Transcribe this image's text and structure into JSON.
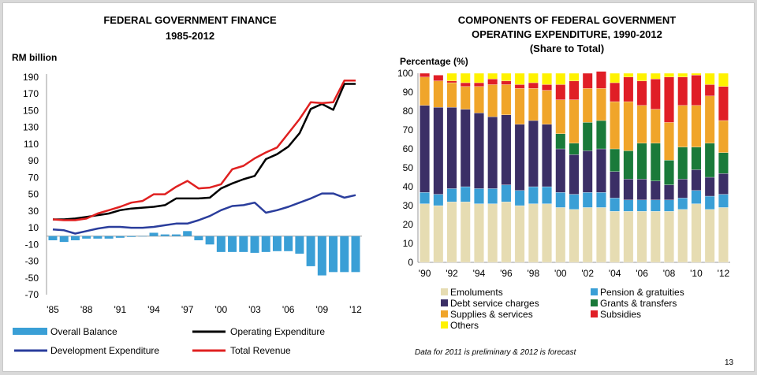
{
  "page_number": "13",
  "chart_data": [
    {
      "type": "line",
      "title": "FEDERAL GOVERNMENT FINANCE",
      "subtitle": "1985-2012",
      "ylabel": "RM  billion",
      "ylim": [
        -70,
        190
      ],
      "yticks": [
        190,
        170,
        150,
        130,
        110,
        90,
        70,
        50,
        30,
        10,
        -10,
        -30,
        -50,
        -70
      ],
      "xticks": [
        "'85",
        "'88",
        "'91",
        "'94",
        "'97",
        "'00",
        "'03",
        "'06",
        "'09",
        "'12"
      ],
      "x": [
        1985,
        1986,
        1987,
        1988,
        1989,
        1990,
        1991,
        1992,
        1993,
        1994,
        1995,
        1996,
        1997,
        1998,
        1999,
        2000,
        2001,
        2002,
        2003,
        2004,
        2005,
        2006,
        2007,
        2008,
        2009,
        2010,
        2011,
        2012
      ],
      "bar_series": {
        "name": "Overall Balance",
        "color": "#3a9fd6",
        "values": [
          -5,
          -7,
          -5,
          -3,
          -3,
          -3,
          -2,
          -1,
          0,
          4,
          2,
          2,
          6,
          -5,
          -10,
          -19,
          -19,
          -19,
          -20,
          -19,
          -18,
          -18,
          -21,
          -36,
          -47,
          -43,
          -43,
          -43
        ]
      },
      "series": [
        {
          "name": "Operating Expenditure",
          "color": "#000000",
          "values": [
            20,
            20,
            21,
            23,
            25,
            27,
            31,
            33,
            34,
            35,
            37,
            45,
            45,
            45,
            46,
            57,
            63,
            68,
            72,
            92,
            98,
            107,
            123,
            152,
            158,
            151,
            182,
            182
          ]
        },
        {
          "name": "Development Expenditure",
          "color": "#2a3d9c",
          "values": [
            8,
            7,
            3,
            6,
            9,
            11,
            11,
            10,
            10,
            11,
            13,
            15,
            15,
            19,
            24,
            31,
            36,
            37,
            40,
            28,
            31,
            35,
            40,
            45,
            51,
            51,
            46,
            49
          ]
        },
        {
          "name": "Total Revenue",
          "color": "#e02020",
          "values": [
            20,
            19,
            19,
            21,
            27,
            31,
            35,
            40,
            42,
            50,
            50,
            59,
            66,
            57,
            58,
            62,
            80,
            84,
            93,
            100,
            106,
            123,
            140,
            160,
            159,
            160,
            186,
            186
          ]
        }
      ]
    },
    {
      "type": "bar",
      "stacked": true,
      "title": "COMPONENTS OF FEDERAL GOVERNMENT",
      "subtitle": "OPERATING EXPENDITURE, 1990-2012",
      "subtitle2": "(Share to Total)",
      "ylabel": "Percentage (%)",
      "ylim": [
        0,
        100
      ],
      "yticks": [
        0,
        10,
        20,
        30,
        40,
        50,
        60,
        70,
        80,
        90,
        100
      ],
      "xticks": [
        "'90",
        "'92",
        "'94",
        "'96",
        "'98",
        "'00",
        "'02",
        "'04",
        "'06",
        "'08",
        "'10",
        "'12"
      ],
      "categories": [
        1990,
        1991,
        1992,
        1993,
        1994,
        1995,
        1996,
        1997,
        1998,
        1999,
        2000,
        2001,
        2002,
        2003,
        2004,
        2005,
        2006,
        2007,
        2008,
        2009,
        2010,
        2011,
        2012
      ],
      "series": [
        {
          "name": "Emoluments",
          "color": "#e6dcb2",
          "values": [
            31,
            30,
            32,
            32,
            31,
            31,
            32,
            30,
            31,
            31,
            29,
            28,
            29,
            29,
            27,
            27,
            27,
            27,
            27,
            28,
            31,
            28,
            29
          ]
        },
        {
          "name": "Pension & gratuities",
          "color": "#3a9fd6",
          "values": [
            6,
            6,
            7,
            8,
            8,
            8,
            9,
            8,
            9,
            9,
            8,
            8,
            8,
            8,
            7,
            6,
            6,
            6,
            6,
            6,
            7,
            7,
            7
          ]
        },
        {
          "name": "Debt service charges",
          "color": "#3b2f66",
          "values": [
            46,
            46,
            43,
            41,
            40,
            38,
            37,
            35,
            35,
            33,
            23,
            21,
            22,
            23,
            14,
            11,
            11,
            10,
            8,
            10,
            11,
            10,
            11
          ]
        },
        {
          "name": "Grants & transfers",
          "color": "#1a7a3a",
          "values": [
            0,
            0,
            0,
            0,
            0,
            0,
            0,
            0,
            0,
            0,
            8,
            6,
            15,
            15,
            12,
            15,
            19,
            20,
            13,
            17,
            12,
            18,
            11
          ]
        },
        {
          "name": "Supplies & services",
          "color": "#f0a52a",
          "values": [
            15,
            14,
            13,
            12,
            14,
            17,
            16,
            19,
            17,
            18,
            18,
            23,
            18,
            17,
            25,
            26,
            20,
            18,
            20,
            22,
            22,
            25,
            17
          ]
        },
        {
          "name": "Subsidies",
          "color": "#e01e26",
          "values": [
            2,
            3,
            1,
            2,
            2,
            3,
            2,
            2,
            3,
            3,
            8,
            10,
            8,
            9,
            10,
            13,
            13,
            16,
            24,
            15,
            16,
            6,
            18
          ]
        },
        {
          "name": "Others",
          "color": "#fff200",
          "values": [
            0,
            0,
            4,
            5,
            5,
            3,
            4,
            6,
            5,
            6,
            6,
            4,
            0,
            0,
            5,
            2,
            4,
            3,
            2,
            2,
            1,
            6,
            7
          ]
        }
      ],
      "note": "Data for 2011 is preliminary & 2012 is forecast"
    }
  ]
}
